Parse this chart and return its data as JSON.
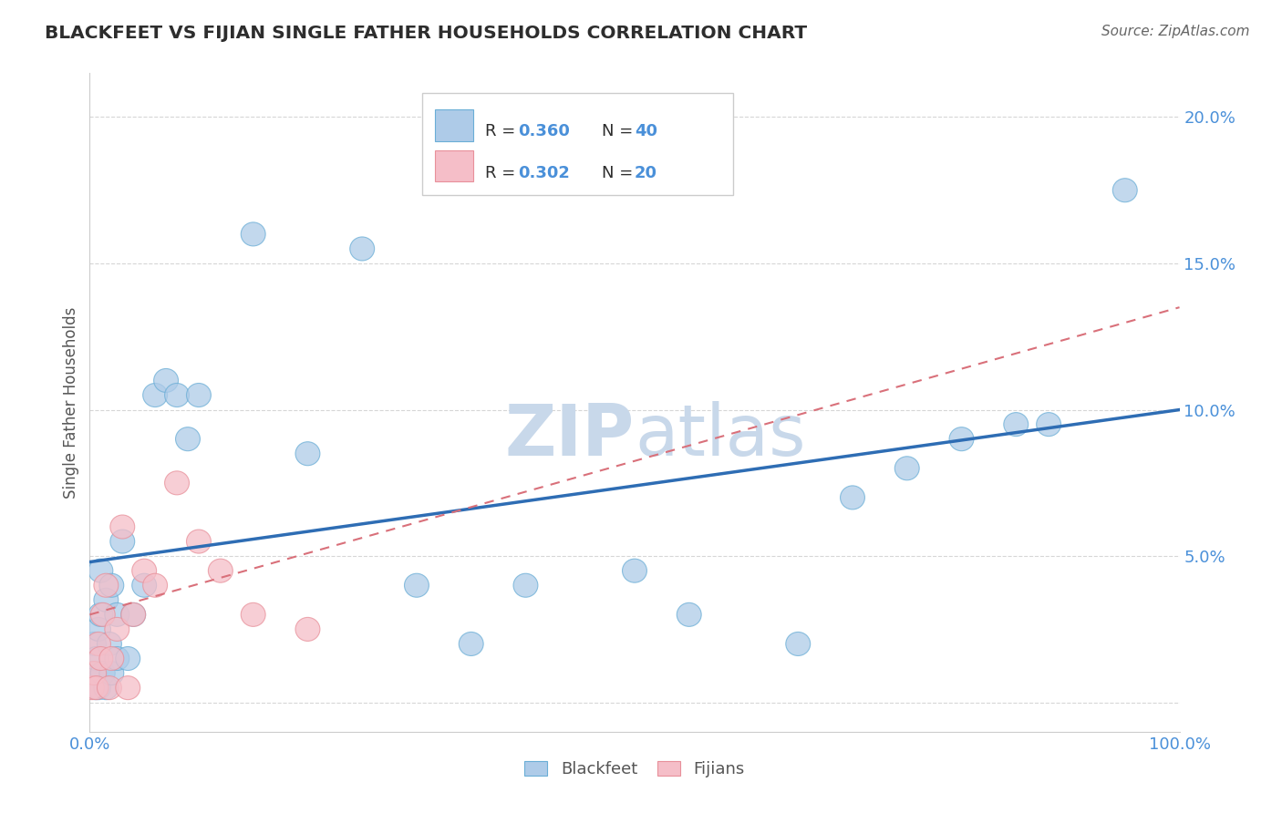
{
  "title": "BLACKFEET VS FIJIAN SINGLE FATHER HOUSEHOLDS CORRELATION CHART",
  "source_text": "Source: ZipAtlas.com",
  "ylabel": "Single Father Households",
  "watermark": "ZIPatlas",
  "blackfeet_R": 0.36,
  "blackfeet_N": 40,
  "fijian_R": 0.302,
  "fijian_N": 20,
  "xlim": [
    0,
    100
  ],
  "ylim": [
    -1.0,
    21.5
  ],
  "blackfeet_color": "#aecbe8",
  "fijian_color": "#f5bec8",
  "blackfeet_edge_color": "#6aaed6",
  "fijian_edge_color": "#e8909a",
  "blackfeet_line_color": "#2e6db4",
  "fijian_line_color": "#d9707a",
  "background_color": "#ffffff",
  "grid_color": "#cccccc",
  "tick_color": "#4a90d9",
  "title_color": "#2d2d2d",
  "text_dark": "#2d2d2d",
  "watermark_color": "#c8d8ea",
  "blackfeet_x": [
    0.3,
    0.4,
    0.5,
    0.6,
    0.8,
    0.8,
    1.0,
    1.0,
    1.2,
    1.5,
    1.5,
    1.8,
    2.0,
    2.0,
    2.5,
    2.5,
    3.0,
    3.5,
    4.0,
    5.0,
    6.0,
    7.0,
    8.0,
    9.0,
    10.0,
    15.0,
    20.0,
    25.0,
    30.0,
    35.0,
    40.0,
    50.0,
    55.0,
    65.0,
    70.0,
    75.0,
    80.0,
    85.0,
    88.0,
    95.0
  ],
  "blackfeet_y": [
    1.0,
    2.0,
    0.5,
    1.5,
    0.5,
    2.5,
    3.0,
    4.5,
    1.0,
    0.5,
    3.5,
    2.0,
    1.0,
    4.0,
    1.5,
    3.0,
    5.5,
    1.5,
    3.0,
    4.0,
    10.5,
    11.0,
    10.5,
    9.0,
    10.5,
    16.0,
    8.5,
    15.5,
    4.0,
    2.0,
    4.0,
    4.5,
    3.0,
    2.0,
    7.0,
    8.0,
    9.0,
    9.5,
    9.5,
    17.5
  ],
  "fijian_x": [
    0.2,
    0.4,
    0.6,
    0.8,
    1.0,
    1.2,
    1.5,
    1.8,
    2.0,
    2.5,
    3.0,
    3.5,
    4.0,
    5.0,
    6.0,
    8.0,
    10.0,
    12.0,
    15.0,
    20.0
  ],
  "fijian_y": [
    0.5,
    1.0,
    0.5,
    2.0,
    1.5,
    3.0,
    4.0,
    0.5,
    1.5,
    2.5,
    6.0,
    0.5,
    3.0,
    4.5,
    4.0,
    7.5,
    5.5,
    4.5,
    3.0,
    2.5
  ],
  "bf_line_x0": 0,
  "bf_line_y0": 4.8,
  "bf_line_x1": 100,
  "bf_line_y1": 10.0,
  "fj_line_x0": 0,
  "fj_line_y0": 3.0,
  "fj_line_x1": 100,
  "fj_line_y1": 13.5
}
